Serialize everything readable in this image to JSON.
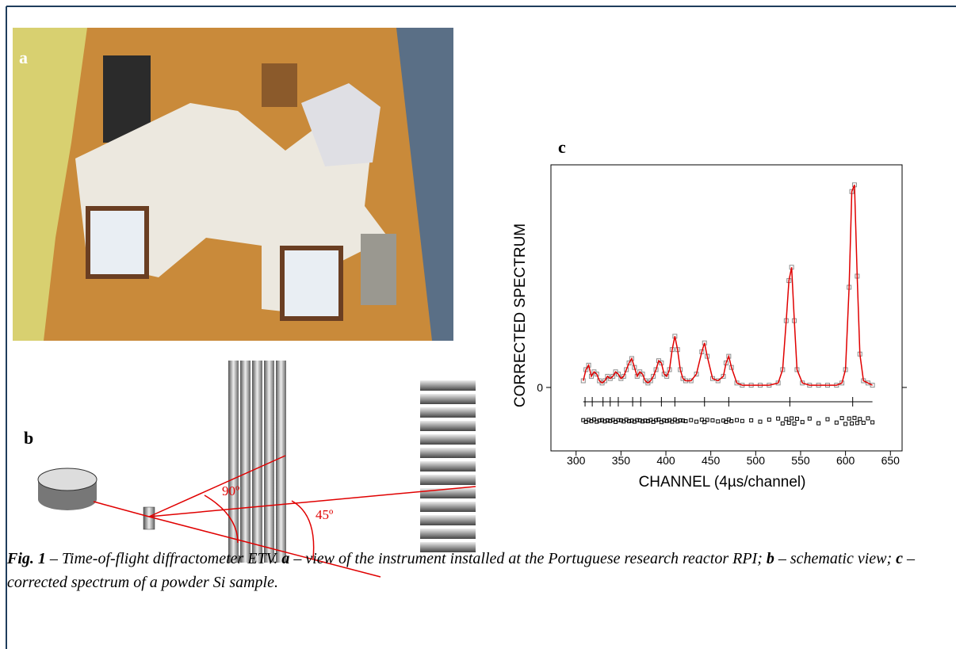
{
  "panel_a": {
    "label": "a"
  },
  "panel_b": {
    "label": "b",
    "angle_1": "90º",
    "angle_2": "45º"
  },
  "chart_data": {
    "type": "line",
    "label": "c",
    "xlabel": "CHANNEL (4µs/channel)",
    "ylabel": "CORRECTED SPECTRUM",
    "xlim": [
      272,
      663
    ],
    "xticks": [
      300,
      350,
      400,
      450,
      500,
      550,
      600,
      650
    ],
    "ylim": [
      -28.5,
      100
    ],
    "yticks": [
      0
    ],
    "x": [
      308,
      311,
      314,
      317,
      320,
      323,
      326,
      329,
      332,
      335,
      338,
      341,
      344,
      347,
      350,
      353,
      356,
      359,
      362,
      365,
      368,
      371,
      374,
      377,
      380,
      383,
      386,
      389,
      392,
      395,
      398,
      401,
      404,
      407,
      410,
      413,
      416,
      419,
      422,
      428,
      434,
      440,
      443,
      446,
      452,
      458,
      464,
      467,
      470,
      473,
      479,
      485,
      495,
      505,
      515,
      525,
      530,
      534,
      537,
      540,
      543,
      546,
      552,
      560,
      570,
      580,
      590,
      596,
      600,
      604,
      607,
      610,
      613,
      616,
      620,
      625,
      630
    ],
    "series": [
      {
        "color": "#e00000",
        "marker_color": "#8c8c8c",
        "values": [
          3,
          8,
          10,
          5,
          7,
          6,
          3,
          2,
          3,
          5,
          4,
          5,
          7,
          6,
          4,
          5,
          8,
          11,
          13,
          9,
          5,
          7,
          6,
          3,
          2,
          3,
          5,
          8,
          12,
          11,
          6,
          5,
          8,
          17,
          23,
          17,
          8,
          4,
          3,
          3,
          6,
          16,
          20,
          14,
          4,
          3,
          5,
          11,
          14,
          9,
          2,
          1,
          1,
          1,
          1,
          2,
          8,
          30,
          48,
          54,
          30,
          8,
          2,
          1,
          1,
          1,
          1,
          2,
          8,
          45,
          88,
          91,
          50,
          15,
          3,
          2,
          1
        ]
      }
    ],
    "reflections": [
      310,
      318,
      330,
      338,
      347,
      363,
      372,
      395,
      410,
      443,
      470,
      538,
      608
    ],
    "difference": [
      0.3,
      -0.5,
      0.4,
      -0.2,
      0.6,
      -0.4,
      0.1,
      0.3,
      -0.3,
      0.2,
      -0.1,
      0.4,
      -0.5,
      0.3,
      0.2,
      -0.3,
      0.5,
      -0.2,
      0.1,
      -0.4,
      0.3,
      0.2,
      -0.3,
      0.1,
      -0.2,
      0.4,
      -0.5,
      0.3,
      0.6,
      -0.6,
      0.2,
      -0.1,
      0.3,
      -0.4,
      0.5,
      -0.3,
      0.2,
      0.1,
      -0.2,
      0.3,
      -0.4,
      0.5,
      -0.6,
      0.4,
      0.2,
      -0.3,
      0.1,
      -0.5,
      0.6,
      -0.2,
      0.3,
      -0.1,
      0.2,
      -0.4,
      0.5,
      1.0,
      -1.2,
      0.8,
      -0.9,
      1.1,
      -1.3,
      0.9,
      -0.6,
      1.0,
      -1.1,
      0.7,
      -0.8,
      1.2,
      -1.4,
      1.0,
      -1.2,
      1.3,
      -1.0,
      0.8,
      -0.9,
      1.1,
      -0.7
    ]
  },
  "caption": {
    "segments": [
      {
        "text": "Fig. 1",
        "bold": true
      },
      {
        "text": " – Time-of-flight diffractometer ETV. "
      },
      {
        "text": "a",
        "bold": true
      },
      {
        "text": " – view of the instrument installed at the Portuguese research reactor RPI; "
      },
      {
        "text": "b",
        "bold": true
      },
      {
        "text": " – schematic view; "
      },
      {
        "text": "c",
        "bold": true
      },
      {
        "text": " – corrected spectrum of a powder Si sample."
      }
    ]
  }
}
